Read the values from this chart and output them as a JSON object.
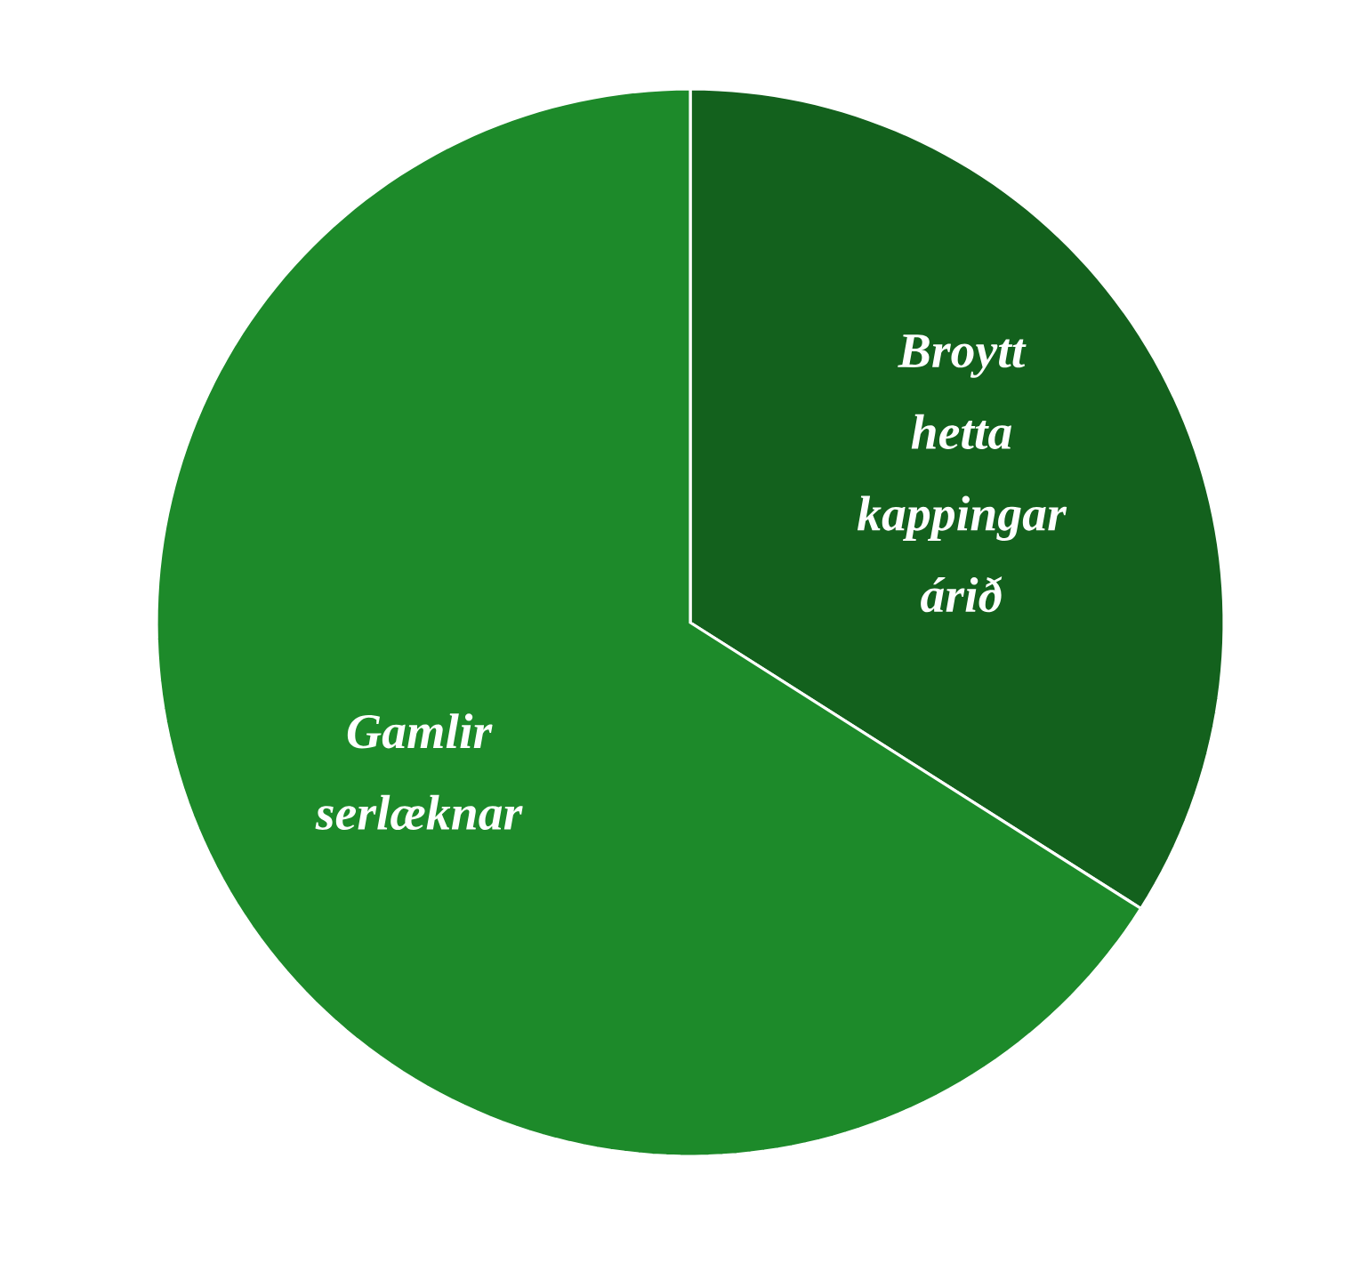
{
  "chart_data": {
    "type": "pie",
    "categories": [
      "Broytt hetta kappingar árið",
      "Gamlir serlæknar"
    ],
    "values": [
      34,
      66
    ],
    "colors": [
      "#13611d",
      "#1d8a2a"
    ]
  }
}
